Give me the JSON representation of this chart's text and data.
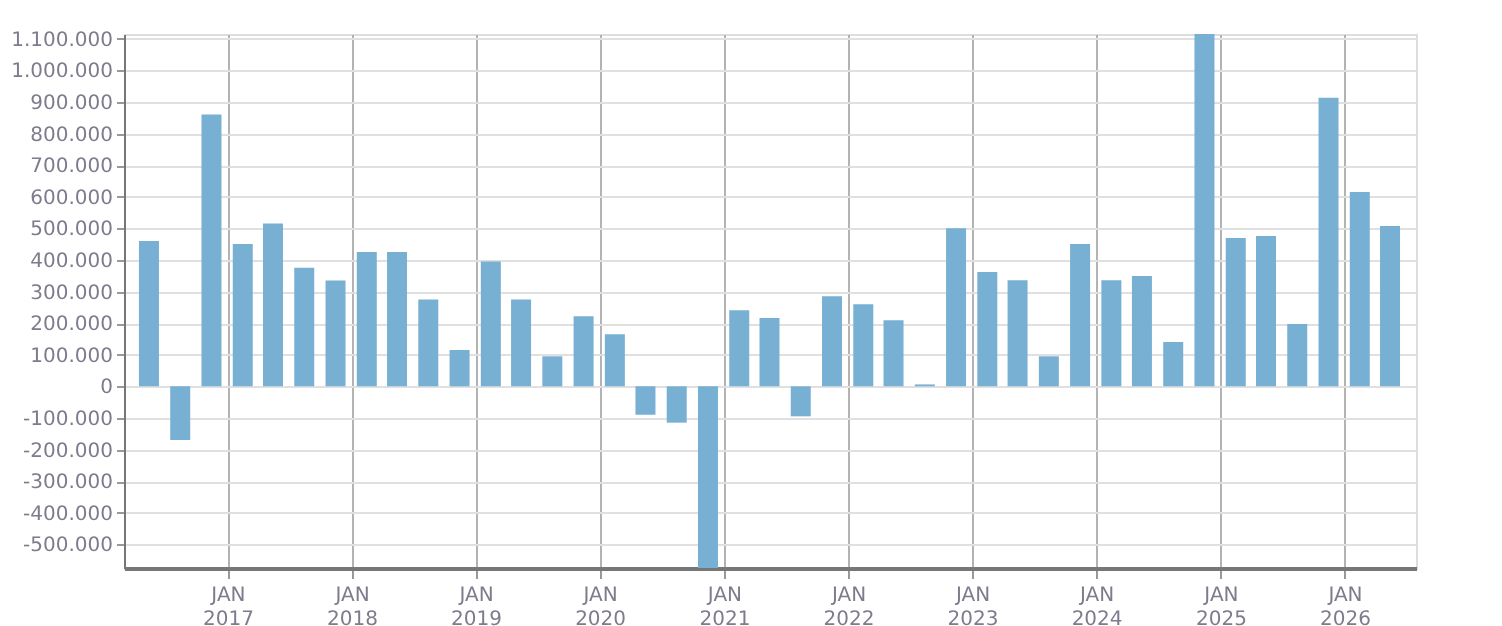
{
  "chart_data": {
    "type": "bar",
    "x": [
      "2016-05-15",
      "2016-08-15",
      "2016-11-15",
      "2017-02-15",
      "2017-05-15",
      "2017-08-15",
      "2017-11-15",
      "2018-02-15",
      "2018-05-15",
      "2018-08-15",
      "2018-11-15",
      "2019-02-15",
      "2019-05-15",
      "2019-08-15",
      "2019-11-15",
      "2020-02-15",
      "2020-05-15",
      "2020-08-15",
      "2020-11-15",
      "2021-02-15",
      "2021-05-15",
      "2021-08-15",
      "2021-11-15",
      "2022-02-15",
      "2022-05-15",
      "2022-08-15",
      "2022-11-15",
      "2023-02-15",
      "2023-05-15",
      "2023-08-15",
      "2023-11-15",
      "2024-02-15",
      "2024-05-15",
      "2024-08-15",
      "2024-11-15",
      "2025-02-15",
      "2025-05-15",
      "2025-08-15",
      "2025-11-15",
      "2026-02-15",
      "2026-05-15"
    ],
    "series": [
      {
        "color": "#77b0d3",
        "values": [
          460000,
          -170000,
          860000,
          450000,
          515000,
          375000,
          335000,
          425000,
          425000,
          275000,
          115000,
          395000,
          275000,
          95000,
          222000,
          165000,
          -90000,
          -115000,
          -575000,
          241000,
          216000,
          -95000,
          285000,
          260000,
          209000,
          6000,
          500000,
          362000,
          336000,
          95000,
          450000,
          336000,
          349000,
          140000,
          1115000,
          469000,
          476000,
          197000,
          913000,
          615000,
          507000
        ]
      }
    ],
    "xlim": [
      "2016-04-01",
      "2026-07-01"
    ],
    "xticks": [
      {
        "value": "2017-01-01",
        "label": "JAN 2017"
      },
      {
        "value": "2018-01-01",
        "label": "JAN 2018"
      },
      {
        "value": "2019-01-01",
        "label": "JAN 2019"
      },
      {
        "value": "2020-01-01",
        "label": "JAN 2020"
      },
      {
        "value": "2021-01-01",
        "label": "JAN 2021"
      },
      {
        "value": "2022-01-01",
        "label": "JAN 2022"
      },
      {
        "value": "2023-01-01",
        "label": "JAN 2023"
      },
      {
        "value": "2024-01-01",
        "label": "JAN 2024"
      },
      {
        "value": "2025-01-01",
        "label": "JAN 2025"
      },
      {
        "value": "2026-01-01",
        "label": "JAN 2026"
      }
    ],
    "ylim": [
      -575000,
      1115000
    ],
    "yticks": [
      {
        "value": -500000,
        "label": "-500.000"
      },
      {
        "value": -400000,
        "label": "-400.000"
      },
      {
        "value": -300000,
        "label": "-300.000"
      },
      {
        "value": -200000,
        "label": "-200.000"
      },
      {
        "value": -100000,
        "label": "-100.000"
      },
      0,
      {
        "value": 100000,
        "label": "100.000"
      },
      {
        "value": 200000,
        "label": "200.000"
      },
      {
        "value": 300000,
        "label": "300.000"
      },
      {
        "value": 400000,
        "label": "400.000"
      },
      {
        "value": 500000,
        "label": "500.000"
      },
      {
        "value": 600000,
        "label": "600.000"
      },
      {
        "value": 700000,
        "label": "700.000"
      },
      {
        "value": 800000,
        "label": "800.000"
      },
      {
        "value": 900000,
        "label": "900.000"
      },
      {
        "value": 1000000,
        "label": "1.000.000"
      },
      {
        "value": 1100000,
        "label": "1.100.000"
      }
    ],
    "grid": true
  }
}
